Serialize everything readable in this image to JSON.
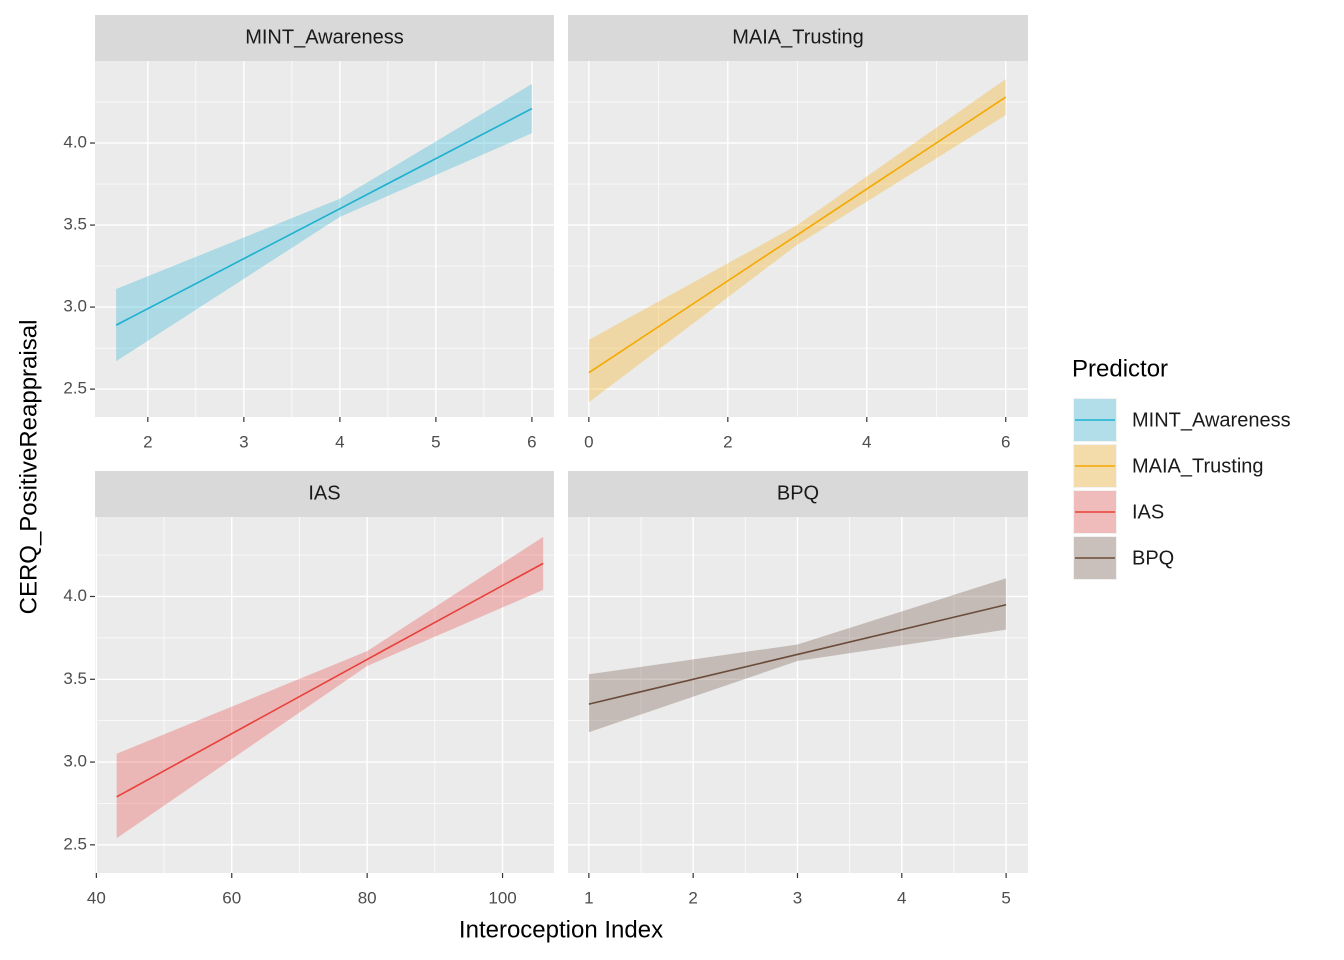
{
  "x_label": "Interoception Index",
  "y_label": "CERQ_PositiveReappraisal",
  "legend_title": "Predictor",
  "chart_data": [
    {
      "type": "line",
      "title": "MINT_Awareness",
      "x": [
        1.67,
        4,
        6
      ],
      "series": [
        {
          "name": "MINT_Awareness",
          "color": "#1cb0d0",
          "values": [
            2.89,
            3.6,
            4.21
          ],
          "lower": [
            2.67,
            3.55,
            4.06
          ],
          "upper": [
            3.11,
            3.66,
            4.36
          ]
        }
      ],
      "xlim": [
        1.45,
        6.23
      ],
      "xticks": [
        2,
        3,
        4,
        5,
        6
      ],
      "xminor": [
        2.5,
        3.5,
        4.5,
        5.5
      ],
      "ylim": [
        2.33,
        4.5
      ],
      "yticks": [
        {
          "value": 2.5,
          "label": "2.5"
        },
        {
          "value": 3,
          "label": "3.0"
        },
        {
          "value": 3.5,
          "label": "3.5"
        },
        {
          "value": 4,
          "label": "4.0"
        }
      ],
      "yminor": [
        2.75,
        3.25,
        3.75,
        4.25
      ],
      "grid": true
    },
    {
      "type": "line",
      "title": "MAIA_Trusting",
      "x": [
        0,
        3,
        6
      ],
      "series": [
        {
          "name": "MAIA_Trusting",
          "color": "#f5a800",
          "values": [
            2.6,
            3.44,
            4.28
          ],
          "lower": [
            2.42,
            3.38,
            4.17
          ],
          "upper": [
            2.8,
            3.5,
            4.39
          ]
        }
      ],
      "xlim": [
        -0.3,
        6.32
      ],
      "xticks": [
        0,
        2,
        4,
        6
      ],
      "xminor": [
        1,
        3,
        5
      ],
      "ylim": [
        2.33,
        4.5
      ],
      "yticks": [
        {
          "value": 2.5,
          "label": "2.5"
        },
        {
          "value": 3,
          "label": "3.0"
        },
        {
          "value": 3.5,
          "label": "3.5"
        },
        {
          "value": 4,
          "label": "4.0"
        }
      ],
      "yminor": [
        2.75,
        3.25,
        3.75,
        4.25
      ],
      "grid": true
    },
    {
      "type": "line",
      "title": "IAS",
      "x": [
        43,
        80,
        106
      ],
      "series": [
        {
          "name": "IAS",
          "color": "#e8403a",
          "values": [
            2.79,
            3.62,
            4.2
          ],
          "lower": [
            2.54,
            3.58,
            4.04
          ],
          "upper": [
            3.05,
            3.67,
            4.36
          ]
        }
      ],
      "xlim": [
        39.8,
        107.6
      ],
      "xticks": [
        40,
        60,
        80,
        100
      ],
      "xminor": [
        50,
        70,
        90
      ],
      "ylim": [
        2.33,
        4.48
      ],
      "yticks": [
        {
          "value": 2.5,
          "label": "2.5"
        },
        {
          "value": 3,
          "label": "3.0"
        },
        {
          "value": 3.5,
          "label": "3.5"
        },
        {
          "value": 4,
          "label": "4.0"
        }
      ],
      "yminor": [
        2.75,
        3.25,
        3.75,
        4.25
      ],
      "grid": true
    },
    {
      "type": "line",
      "title": "BPQ",
      "x": [
        1,
        3,
        5
      ],
      "series": [
        {
          "name": "BPQ",
          "color": "#6b4c3b",
          "values": [
            3.35,
            3.65,
            3.95
          ],
          "lower": [
            3.18,
            3.61,
            3.8
          ],
          "upper": [
            3.53,
            3.71,
            4.11
          ]
        }
      ],
      "xlim": [
        0.8,
        5.21
      ],
      "xticks": [
        1,
        2,
        3,
        4,
        5
      ],
      "xminor": [
        1.5,
        2.5,
        3.5,
        4.5
      ],
      "ylim": [
        2.33,
        4.48
      ],
      "yticks": [
        {
          "value": 2.5,
          "label": "2.5"
        },
        {
          "value": 3,
          "label": "3.0"
        },
        {
          "value": 3.5,
          "label": "3.5"
        },
        {
          "value": 4,
          "label": "4.0"
        }
      ],
      "yminor": [
        2.75,
        3.25,
        3.75,
        4.25
      ],
      "grid": true
    }
  ]
}
